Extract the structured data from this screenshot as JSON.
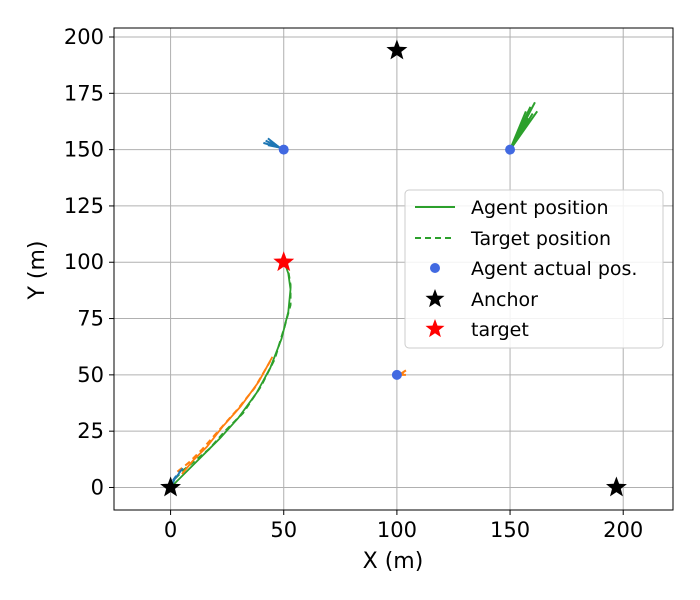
{
  "chart_data": {
    "type": "scatter",
    "xlabel": "X (m)",
    "ylabel": "Y (m)",
    "xlim": [
      -25,
      222
    ],
    "ylim": [
      -10,
      204
    ],
    "xticks": [
      0,
      50,
      100,
      150,
      200
    ],
    "yticks": [
      0,
      25,
      50,
      75,
      100,
      125,
      150,
      175,
      200
    ],
    "grid": true,
    "legend": {
      "placement": "center-right",
      "entries": [
        {
          "label": "Agent position",
          "style": "solid-line",
          "color": "#2ca02c"
        },
        {
          "label": "Target position",
          "style": "dashed-line",
          "color": "#2ca02c"
        },
        {
          "label": "Agent actual pos.",
          "style": "dot",
          "color": "#4169e1"
        },
        {
          "label": "Anchor",
          "style": "star",
          "color": "#000000"
        },
        {
          "label": "target",
          "style": "star",
          "color": "#ff0000"
        }
      ]
    },
    "anchors": [
      {
        "x": 0,
        "y": 0
      },
      {
        "x": 100,
        "y": 194
      },
      {
        "x": 197,
        "y": 0
      }
    ],
    "target": {
      "x": 50,
      "y": 100
    },
    "agent_actual": [
      {
        "x": 50,
        "y": 150
      },
      {
        "x": 150,
        "y": 150
      },
      {
        "x": 100,
        "y": 50
      }
    ],
    "series": [
      {
        "color": "#2ca02c",
        "agent_path": [
          [
            0,
            0
          ],
          [
            4,
            4
          ],
          [
            9,
            9
          ],
          [
            15,
            15
          ],
          [
            22,
            22
          ],
          [
            30,
            31
          ],
          [
            38,
            42
          ],
          [
            44,
            53
          ],
          [
            49,
            66
          ],
          [
            52,
            78
          ],
          [
            53,
            88
          ],
          [
            52,
            95
          ],
          [
            51,
            98
          ]
        ],
        "target_path": [
          [
            2,
            4
          ],
          [
            6,
            8
          ],
          [
            11,
            12
          ],
          [
            17,
            17
          ],
          [
            24,
            25
          ],
          [
            32,
            33
          ],
          [
            40,
            45
          ],
          [
            46,
            57
          ],
          [
            50,
            70
          ],
          [
            53,
            81
          ],
          [
            53,
            90
          ],
          [
            52,
            96
          ],
          [
            51,
            99
          ]
        ]
      },
      {
        "color": "#ff7f0e",
        "agent_path": [
          [
            5,
            6
          ],
          [
            10,
            12
          ],
          [
            16,
            18
          ],
          [
            23,
            27
          ],
          [
            31,
            36
          ],
          [
            39,
            47
          ],
          [
            45,
            58
          ]
        ],
        "target_path": [
          [
            3,
            7
          ],
          [
            8,
            11
          ],
          [
            14,
            17
          ],
          [
            21,
            25
          ],
          [
            29,
            34
          ],
          [
            37,
            44
          ],
          [
            44,
            56
          ]
        ]
      },
      {
        "color": "#1f77b4",
        "agent_path": [
          [
            0,
            0
          ],
          [
            2,
            4
          ],
          [
            5,
            8
          ]
        ],
        "target_path": [
          [
            1,
            3
          ],
          [
            3,
            6
          ],
          [
            6,
            9
          ]
        ]
      }
    ],
    "agent_traces": [
      {
        "color": "#2ca02c",
        "origin": [
          150,
          150
        ],
        "ends": [
          [
            157,
            167
          ],
          [
            159,
            169
          ],
          [
            161,
            171
          ],
          [
            158,
            164
          ],
          [
            160,
            166
          ],
          [
            162,
            167
          ],
          [
            156,
            160
          ],
          [
            158,
            162
          ],
          [
            159,
            163
          ],
          [
            155,
            158
          ]
        ]
      },
      {
        "color": "#1f77b4",
        "origin": [
          48,
          151
        ],
        "ends": [
          [
            42,
            154
          ],
          [
            43,
            155
          ],
          [
            44,
            154
          ],
          [
            41,
            153
          ],
          [
            45,
            153
          ],
          [
            46,
            152
          ],
          [
            43,
            152
          ]
        ]
      },
      {
        "color": "#ff7f0e",
        "origin": [
          101,
          50
        ],
        "ends": [
          [
            103,
            51
          ],
          [
            104,
            52
          ],
          [
            102,
            51
          ],
          [
            104,
            50
          ]
        ]
      }
    ]
  }
}
